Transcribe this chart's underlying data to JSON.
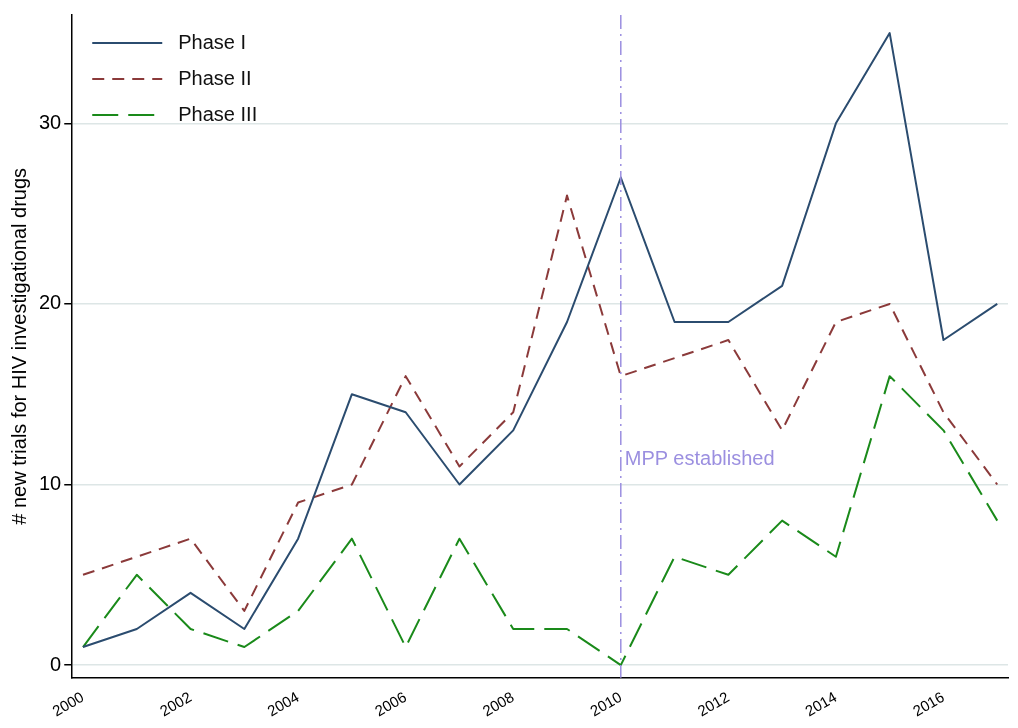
{
  "chart_data": {
    "type": "line",
    "ylabel": "# new trials for HIV investigational drugs",
    "x": [
      2000,
      2001,
      2002,
      2003,
      2004,
      2005,
      2006,
      2007,
      2008,
      2009,
      2010,
      2011,
      2012,
      2013,
      2014,
      2015,
      2016,
      2017
    ],
    "series": [
      {
        "name": "Phase I",
        "color": "#2b4c6f",
        "line_style": "solid",
        "values": [
          1,
          2,
          4,
          2,
          7,
          15,
          14,
          10,
          13,
          19,
          27,
          19,
          19,
          21,
          30,
          35,
          18,
          20
        ]
      },
      {
        "name": "Phase II",
        "color": "#8b3a3a",
        "line_style": "dashed",
        "values": [
          5,
          6,
          7,
          3,
          9,
          10,
          16,
          11,
          14,
          26,
          16,
          17,
          18,
          13,
          19,
          20,
          14,
          10
        ]
      },
      {
        "name": "Phase III",
        "color": "#1a8a1a",
        "line_style": "longdash",
        "values": [
          1,
          5,
          2,
          1,
          3,
          7,
          1,
          7,
          2,
          2,
          0,
          6,
          5,
          8,
          6,
          16,
          13,
          8
        ]
      }
    ],
    "xlim": [
      1999.8,
      2017.2
    ],
    "xticks": [
      2000,
      2002,
      2004,
      2006,
      2008,
      2010,
      2012,
      2014,
      2016
    ],
    "ylim": [
      -0.7,
      36
    ],
    "yticks": [
      0,
      10,
      20,
      30
    ],
    "ref_lines": [
      {
        "axis": "x",
        "value": 2010,
        "label": "MPP established",
        "color": "#9b8fe0",
        "line_style": "dashdot"
      }
    ],
    "grid": "y",
    "legend": "top left",
    "marker": "none"
  }
}
